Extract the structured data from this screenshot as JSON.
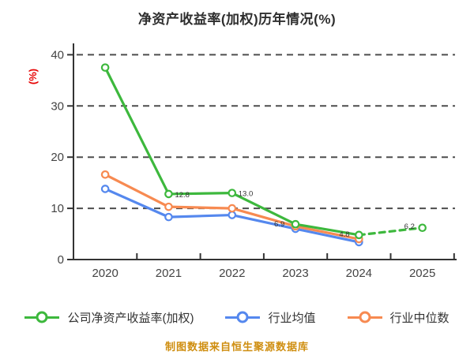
{
  "title": "净资产收益率(加权)历年情况(%)",
  "footer_note": "制图数据来自恒生聚源数据库",
  "legend": [
    {
      "label": "公司净资产收益率(加权)",
      "color": "#3db83d"
    },
    {
      "label": "行业均值",
      "color": "#5588ee"
    },
    {
      "label": "行业中位数",
      "color": "#f78a51"
    }
  ],
  "colors": {
    "background": "#ffffff",
    "title_text": "#2e2e2e",
    "axis_text": "#444444",
    "axis_line": "#333333",
    "grid_line": "#4d4d4d",
    "ylabel_red": "#e60000",
    "value_label": "#333333",
    "footer_orange": "#cf8e10"
  },
  "chart_data": {
    "type": "line",
    "title": "净资产收益率(加权)历年情况(%)",
    "ylabel": "(%)",
    "xlabel": "",
    "categories": [
      "2020",
      "2021",
      "2022",
      "2023",
      "2024",
      "2025"
    ],
    "y_ticks": [
      0,
      10,
      20,
      30,
      40
    ],
    "ylim": [
      0,
      40
    ],
    "grid": "horizontal-dashed",
    "legend_position": "bottom",
    "marker": "circle-white-fill",
    "series": [
      {
        "name": "公司净资产收益率(加权)",
        "color": "#3db83d",
        "values": [
          37.5,
          12.8,
          13.0,
          6.9,
          4.8,
          6.2
        ],
        "point_labels": [
          "",
          "12.8",
          "13.0",
          "6.9",
          "4.8",
          "6.2"
        ],
        "last_segment_style": "dashed"
      },
      {
        "name": "行业均值",
        "color": "#5588ee",
        "values": [
          13.8,
          8.3,
          8.7,
          6.0,
          3.4,
          null
        ]
      },
      {
        "name": "行业中位数",
        "color": "#f78a51",
        "values": [
          16.6,
          10.3,
          10.0,
          6.5,
          4.0,
          null
        ]
      }
    ]
  }
}
